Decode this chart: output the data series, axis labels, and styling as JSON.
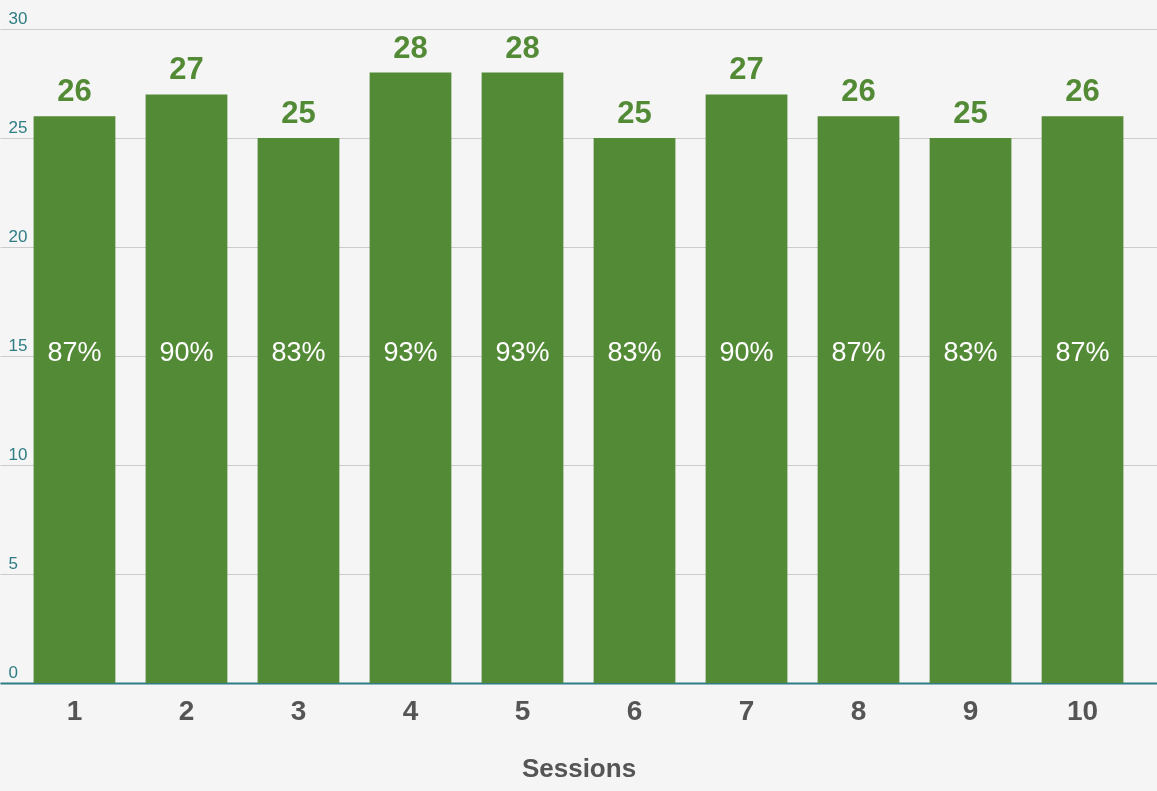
{
  "chart_data": {
    "type": "bar",
    "xlabel": "Sessions",
    "categories": [
      "1",
      "2",
      "3",
      "4",
      "5",
      "6",
      "7",
      "8",
      "9",
      "10"
    ],
    "values": [
      26,
      27,
      25,
      28,
      28,
      25,
      27,
      26,
      25,
      26
    ],
    "color": "#538a36",
    "ylim": [
      0,
      30
    ],
    "yticks": [
      0,
      5,
      10,
      15,
      20,
      25,
      30
    ],
    "grid": "y",
    "data_labels": true,
    "annotations": [
      "87%",
      "90%",
      "83%",
      "93%",
      "93%",
      "83%",
      "90%",
      "87%",
      "83%",
      "87%"
    ]
  }
}
